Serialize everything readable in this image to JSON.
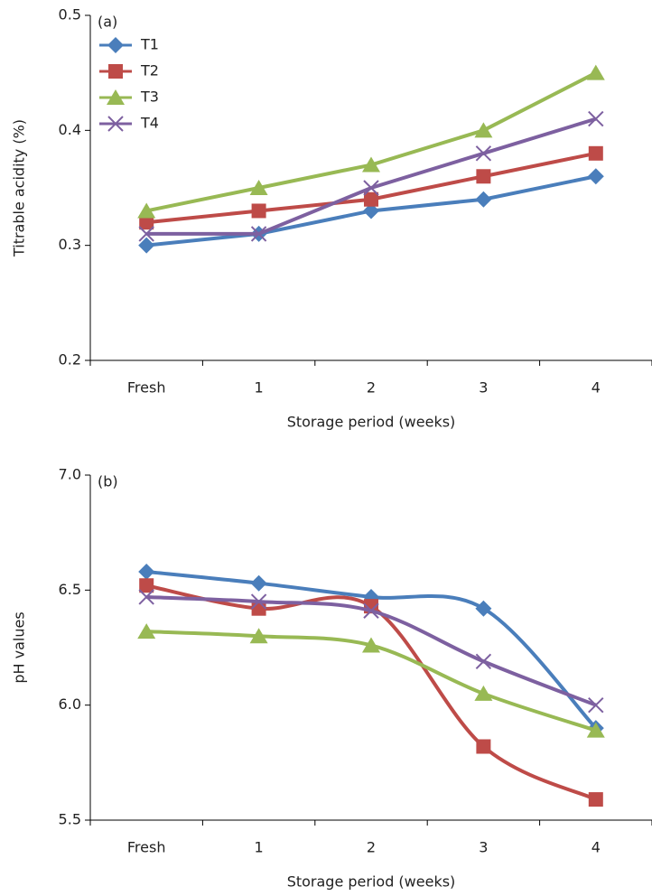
{
  "chart_data": [
    {
      "type": "line",
      "annotation": "(a)",
      "x_label": "Storage period (weeks)",
      "y_label": "Titrable acidity (%)",
      "categories": [
        "Fresh",
        "1",
        "2",
        "3",
        "4"
      ],
      "series": [
        {
          "name": "T1",
          "color": "#4a7ebb",
          "marker": "diamond",
          "values": [
            0.3,
            0.31,
            0.33,
            0.34,
            0.36
          ]
        },
        {
          "name": "T2",
          "color": "#be4b48",
          "marker": "square",
          "values": [
            0.32,
            0.33,
            0.34,
            0.36,
            0.38
          ]
        },
        {
          "name": "T3",
          "color": "#98b954",
          "marker": "triangle",
          "values": [
            0.33,
            0.35,
            0.37,
            0.4,
            0.45
          ]
        },
        {
          "name": "T4",
          "color": "#7d60a0",
          "marker": "x",
          "values": [
            0.31,
            0.31,
            0.35,
            0.38,
            0.41
          ]
        }
      ],
      "ylim": [
        0.2,
        0.5
      ],
      "yticks": [
        0.2,
        0.3,
        0.4,
        0.5
      ],
      "legend": "upper left",
      "smooth": false
    },
    {
      "type": "line",
      "annotation": "(b)",
      "x_label": "Storage period (weeks)",
      "y_label": "pH values",
      "categories": [
        "Fresh",
        "1",
        "2",
        "3",
        "4"
      ],
      "series": [
        {
          "name": "T1",
          "color": "#4a7ebb",
          "marker": "diamond",
          "values": [
            6.58,
            6.53,
            6.47,
            6.42,
            5.9
          ]
        },
        {
          "name": "T2",
          "color": "#be4b48",
          "marker": "square",
          "values": [
            6.52,
            6.42,
            6.43,
            5.82,
            5.59
          ]
        },
        {
          "name": "T3",
          "color": "#98b954",
          "marker": "triangle",
          "values": [
            6.32,
            6.3,
            6.26,
            6.05,
            5.89
          ]
        },
        {
          "name": "T4",
          "color": "#7d60a0",
          "marker": "x",
          "values": [
            6.47,
            6.45,
            6.41,
            6.19,
            6.0
          ]
        }
      ],
      "ylim": [
        5.5,
        7.0
      ],
      "yticks": [
        5.5,
        {
          "value": 6.0,
          "label": "6.0"
        },
        6.5,
        {
          "value": 7.0,
          "label": "7.0"
        }
      ],
      "smooth": true
    }
  ]
}
